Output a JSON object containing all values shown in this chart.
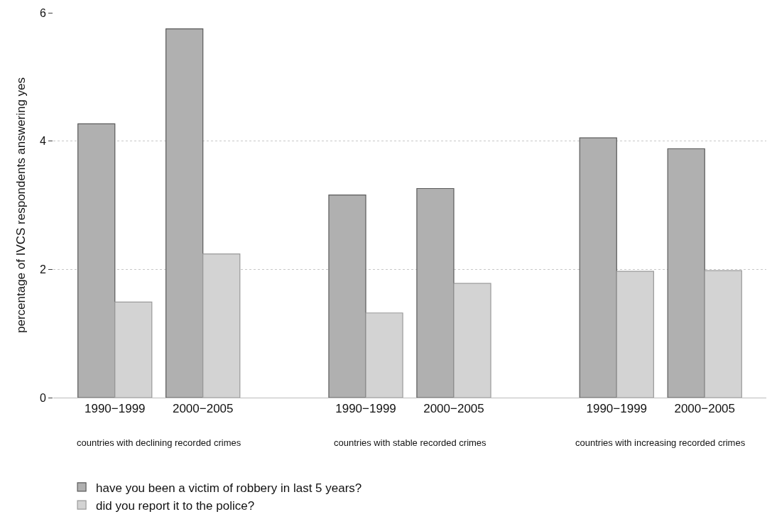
{
  "chart_data": {
    "type": "bar",
    "ylabel": "percentage of IVCS respondents answering yes",
    "categories": [
      "1990−1999",
      "2000−2005",
      "1990−1999",
      "2000−2005",
      "1990−1999",
      "2000−2005"
    ],
    "series": [
      {
        "name": "have you been a victim of robbery in last 5 years?",
        "color": "#b0b0b0",
        "values": [
          4.27,
          5.75,
          3.16,
          3.26,
          4.05,
          3.88
        ]
      },
      {
        "name": "did you report it to the police?",
        "color": "#d3d3d3",
        "values": [
          1.49,
          2.24,
          1.32,
          1.78,
          1.97,
          1.98
        ]
      }
    ],
    "annotations": [
      "countries with declining recorded crimes",
      "countries with stable recorded crimes",
      "countries with increasing recorded crimes"
    ],
    "ylim": [
      0,
      6
    ],
    "yticks": [
      0,
      2,
      4,
      6
    ],
    "grid": "y",
    "legend": "bottom left"
  }
}
